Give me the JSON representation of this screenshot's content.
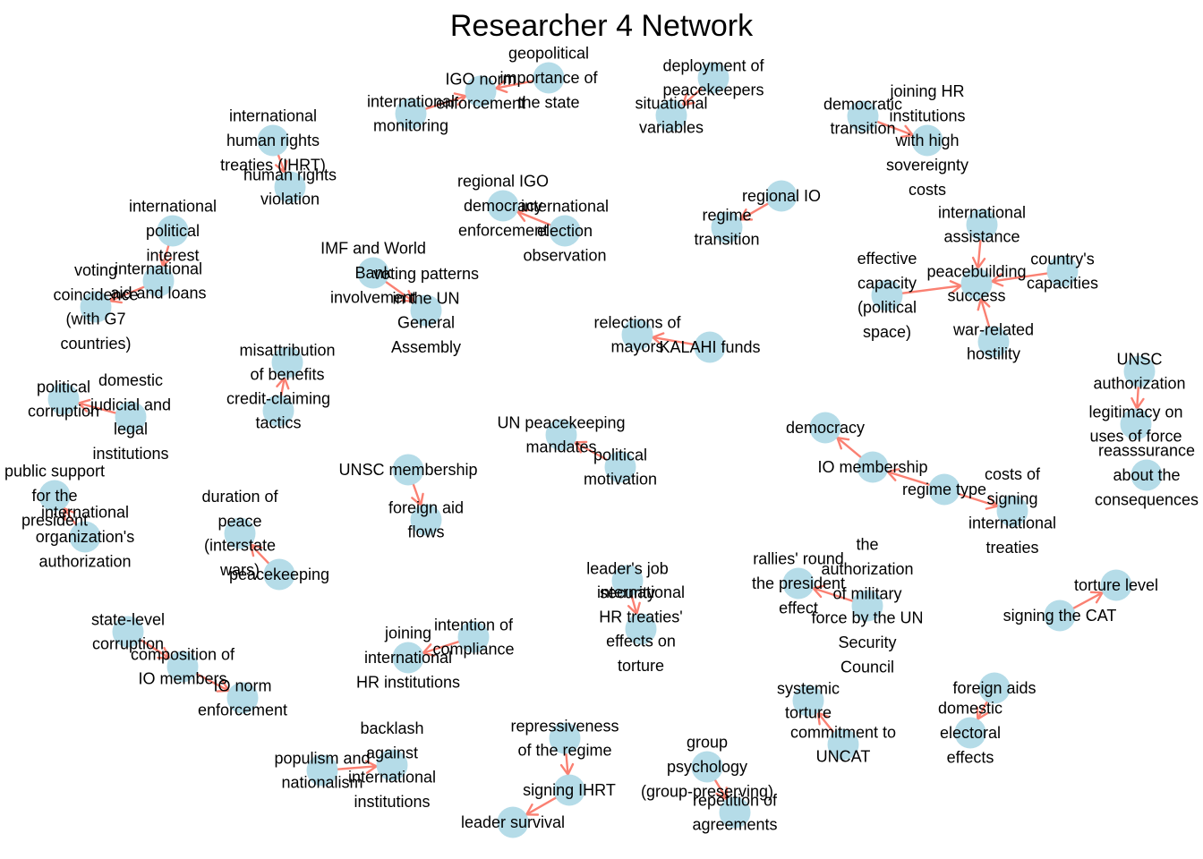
{
  "title": "Researcher 4 Network",
  "colors": {
    "node": "#add8e6",
    "edge": "#fa8072",
    "text": "#000000"
  },
  "nodes": [
    {
      "id": "n1",
      "lines": [
        "geopolitical",
        "importance of",
        "the state"
      ]
    },
    {
      "id": "n2",
      "lines": [
        "IGO norm",
        "enforcement"
      ]
    },
    {
      "id": "n3",
      "lines": [
        "international",
        "monitoring"
      ]
    },
    {
      "id": "n4",
      "lines": [
        "deployment of",
        "peacekeepers"
      ]
    },
    {
      "id": "n5",
      "lines": [
        "situational",
        "variables"
      ]
    },
    {
      "id": "n6",
      "lines": [
        "democratic",
        "transition"
      ]
    },
    {
      "id": "n7",
      "lines": [
        "joining HR",
        "institutions",
        "with high",
        "sovereignty",
        "costs"
      ]
    },
    {
      "id": "n8",
      "lines": [
        "international",
        "human rights",
        "treaties (IHRT)"
      ]
    },
    {
      "id": "n9",
      "lines": [
        "human rights",
        "violation"
      ]
    },
    {
      "id": "n10",
      "lines": [
        "regional IGO",
        "democracy",
        "enforcement"
      ]
    },
    {
      "id": "n11",
      "lines": [
        "international",
        "election",
        "observation"
      ]
    },
    {
      "id": "n12",
      "lines": [
        "regional IO"
      ]
    },
    {
      "id": "n13",
      "lines": [
        "regime",
        "transition"
      ]
    },
    {
      "id": "n14",
      "lines": [
        "international",
        "assistance"
      ]
    },
    {
      "id": "n15",
      "lines": [
        "international",
        "political",
        "interest"
      ]
    },
    {
      "id": "n16",
      "lines": [
        "international",
        "aid and loans"
      ]
    },
    {
      "id": "n17",
      "lines": [
        "voting",
        "coincidence",
        "(with G7",
        "countries)"
      ]
    },
    {
      "id": "n18",
      "lines": [
        "IMF and World",
        "Bank",
        "involvement"
      ]
    },
    {
      "id": "n19",
      "lines": [
        "voting patterns",
        "in the UN",
        "General",
        "Assembly"
      ]
    },
    {
      "id": "n20",
      "lines": [
        "effective",
        "capacity",
        "(political",
        "space)"
      ]
    },
    {
      "id": "n21",
      "lines": [
        "peacebuilding",
        "success"
      ]
    },
    {
      "id": "n22",
      "lines": [
        "country's",
        "capacities"
      ]
    },
    {
      "id": "n23",
      "lines": [
        "war-related",
        "hostility"
      ]
    },
    {
      "id": "n24",
      "lines": [
        "relections of",
        "mayors"
      ]
    },
    {
      "id": "n25",
      "lines": [
        "KALAHI funds"
      ]
    },
    {
      "id": "n26",
      "lines": [
        "misattribution",
        "of benefits"
      ]
    },
    {
      "id": "n27",
      "lines": [
        "credit-claiming",
        "tactics"
      ]
    },
    {
      "id": "n28",
      "lines": [
        "political",
        "corruption"
      ]
    },
    {
      "id": "n29",
      "lines": [
        "domestic",
        "judicial and",
        "legal",
        "institutions"
      ]
    },
    {
      "id": "n30",
      "lines": [
        "UNSC",
        "authorization"
      ]
    },
    {
      "id": "n31",
      "lines": [
        "legitimacy on",
        "uses of force"
      ]
    },
    {
      "id": "n32",
      "lines": [
        "reasssurance",
        "about the",
        "consequences"
      ]
    },
    {
      "id": "n33",
      "lines": [
        "UN peacekeeping",
        "mandates"
      ]
    },
    {
      "id": "n34",
      "lines": [
        "political",
        "motivation"
      ]
    },
    {
      "id": "n35",
      "lines": [
        "democracy"
      ]
    },
    {
      "id": "n36",
      "lines": [
        "IO membership"
      ]
    },
    {
      "id": "n37",
      "lines": [
        "regime type"
      ]
    },
    {
      "id": "n38",
      "lines": [
        "costs of",
        "signing",
        "international",
        "treaties"
      ]
    },
    {
      "id": "n39",
      "lines": [
        "UNSC membership"
      ]
    },
    {
      "id": "n40",
      "lines": [
        "foreign aid",
        "flows"
      ]
    },
    {
      "id": "n41",
      "lines": [
        "public support",
        "for the",
        "president"
      ]
    },
    {
      "id": "n42",
      "lines": [
        "international",
        "organization's",
        "authorization"
      ]
    },
    {
      "id": "n43",
      "lines": [
        "duration of",
        "peace",
        "(interstate",
        "wars)"
      ]
    },
    {
      "id": "n44",
      "lines": [
        "peacekeeping"
      ]
    },
    {
      "id": "n45",
      "lines": [
        "leader's job",
        "security"
      ]
    },
    {
      "id": "n46",
      "lines": [
        "international",
        "HR treaties'",
        "effects on",
        "torture"
      ]
    },
    {
      "id": "n47",
      "lines": [
        "rallies' round",
        "the president",
        "effect"
      ]
    },
    {
      "id": "n48",
      "lines": [
        "the",
        "authorization",
        "of military",
        "force by the UN",
        "Security",
        "Council"
      ]
    },
    {
      "id": "n49",
      "lines": [
        "torture level"
      ]
    },
    {
      "id": "n50",
      "lines": [
        "signing the CAT"
      ]
    },
    {
      "id": "n51",
      "lines": [
        "state-level",
        "corruption"
      ]
    },
    {
      "id": "n52",
      "lines": [
        "composition of",
        "IO members"
      ]
    },
    {
      "id": "n53",
      "lines": [
        "IO norm",
        "enforcement"
      ]
    },
    {
      "id": "n54",
      "lines": [
        "intention of",
        "compliance"
      ]
    },
    {
      "id": "n55",
      "lines": [
        "joining",
        "international",
        "HR institutions"
      ]
    },
    {
      "id": "n56",
      "lines": [
        "systemic",
        "torture"
      ]
    },
    {
      "id": "n57",
      "lines": [
        "commitment to",
        "UNCAT"
      ]
    },
    {
      "id": "n58",
      "lines": [
        "foreign aids"
      ]
    },
    {
      "id": "n59",
      "lines": [
        "domestic",
        "electoral",
        "effects"
      ]
    },
    {
      "id": "n60",
      "lines": [
        "backlash",
        "against",
        "international",
        "institutions"
      ]
    },
    {
      "id": "n61",
      "lines": [
        "populism and",
        "nationalism"
      ]
    },
    {
      "id": "n62",
      "lines": [
        "repressiveness",
        "of the regime"
      ]
    },
    {
      "id": "n63",
      "lines": [
        "signing IHRT"
      ]
    },
    {
      "id": "n64",
      "lines": [
        "leader survival"
      ]
    },
    {
      "id": "n65",
      "lines": [
        "group",
        "psychology",
        "(group-preserving)"
      ]
    },
    {
      "id": "n66",
      "lines": [
        "repetition of",
        "agreements"
      ]
    }
  ],
  "edges": [
    {
      "source": "n1",
      "target": "n2"
    },
    {
      "source": "n3",
      "target": "n2"
    },
    {
      "source": "n4",
      "target": "n5"
    },
    {
      "source": "n6",
      "target": "n7"
    },
    {
      "source": "n8",
      "target": "n9"
    },
    {
      "source": "n11",
      "target": "n10"
    },
    {
      "source": "n12",
      "target": "n13"
    },
    {
      "source": "n14",
      "target": "n21"
    },
    {
      "source": "n15",
      "target": "n16"
    },
    {
      "source": "n16",
      "target": "n17"
    },
    {
      "source": "n18",
      "target": "n19"
    },
    {
      "source": "n20",
      "target": "n21"
    },
    {
      "source": "n22",
      "target": "n21"
    },
    {
      "source": "n23",
      "target": "n21"
    },
    {
      "source": "n25",
      "target": "n24"
    },
    {
      "source": "n27",
      "target": "n26"
    },
    {
      "source": "n29",
      "target": "n28"
    },
    {
      "source": "n30",
      "target": "n31"
    },
    {
      "source": "n34",
      "target": "n33"
    },
    {
      "source": "n36",
      "target": "n35"
    },
    {
      "source": "n37",
      "target": "n36"
    },
    {
      "source": "n37",
      "target": "n38"
    },
    {
      "source": "n39",
      "target": "n40"
    },
    {
      "source": "n42",
      "target": "n41"
    },
    {
      "source": "n44",
      "target": "n43"
    },
    {
      "source": "n45",
      "target": "n46"
    },
    {
      "source": "n48",
      "target": "n47"
    },
    {
      "source": "n50",
      "target": "n49"
    },
    {
      "source": "n51",
      "target": "n52"
    },
    {
      "source": "n52",
      "target": "n53"
    },
    {
      "source": "n54",
      "target": "n55"
    },
    {
      "source": "n57",
      "target": "n56"
    },
    {
      "source": "n58",
      "target": "n59"
    },
    {
      "source": "n61",
      "target": "n60"
    },
    {
      "source": "n62",
      "target": "n63"
    },
    {
      "source": "n63",
      "target": "n64"
    },
    {
      "source": "n65",
      "target": "n66"
    }
  ]
}
